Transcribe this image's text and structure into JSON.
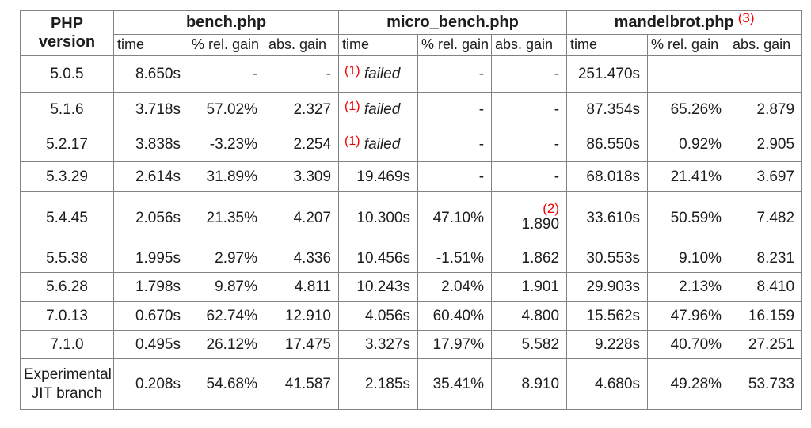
{
  "colors": {
    "red": "#f20000",
    "border": "#828282",
    "text": "#1d1d1d",
    "bg": "#ffffff"
  },
  "table": {
    "corner_header": "PHP version",
    "groups": [
      {
        "label": "bench.php",
        "note": ""
      },
      {
        "label": "micro_bench.php",
        "note": ""
      },
      {
        "label": "mandelbrot.php",
        "note": "(3)"
      }
    ],
    "subheaders": [
      "time",
      "% rel. gain",
      "abs. gain",
      "time",
      "% rel. gain",
      "abs. gain",
      "time",
      "% rel. gain",
      "abs. gain"
    ],
    "column_keys": [
      "bench-time",
      "bench-rel-gain",
      "bench-abs-gain",
      "micro-time",
      "micro-rel-gain",
      "micro-abs-gain",
      "mandelbrot-time",
      "mandelbrot-rel-gain",
      "mandelbrot-abs-gain"
    ],
    "rows": [
      {
        "version": "5.0.5",
        "cells": [
          "8.650s",
          "-",
          "-",
          {
            "note": "(1)",
            "text": "failed",
            "italic": true,
            "align": "left"
          },
          "-",
          "-",
          "251.470s",
          "",
          ""
        ]
      },
      {
        "version": "5.1.6",
        "cells": [
          "3.718s",
          "57.02%",
          "2.327",
          {
            "note": "(1)",
            "text": "failed",
            "italic": true,
            "align": "left"
          },
          "-",
          "-",
          "87.354s",
          "65.26%",
          "2.879"
        ]
      },
      {
        "version": "5.2.17",
        "cells": [
          "3.838s",
          "-3.23%",
          "2.254",
          {
            "note": "(1)",
            "text": "failed",
            "italic": true,
            "align": "left"
          },
          "-",
          "-",
          "86.550s",
          "0.92%",
          "2.905"
        ]
      },
      {
        "version": "5.3.29",
        "cells": [
          "2.614s",
          "31.89%",
          "3.309",
          "19.469s",
          "-",
          "-",
          "68.018s",
          "21.41%",
          "3.697"
        ]
      },
      {
        "version": "5.4.45",
        "cells": [
          "2.056s",
          "21.35%",
          "4.207",
          "10.300s",
          "47.10%",
          {
            "note": "(2)",
            "note_block": true,
            "text": "1.890"
          },
          "33.610s",
          "50.59%",
          "7.482"
        ]
      },
      {
        "version": "5.5.38",
        "cells": [
          "1.995s",
          "2.97%",
          "4.336",
          "10.456s",
          "-1.51%",
          "1.862",
          "30.553s",
          "9.10%",
          "8.231"
        ]
      },
      {
        "version": "5.6.28",
        "cells": [
          "1.798s",
          "9.87%",
          "4.811",
          "10.243s",
          "2.04%",
          "1.901",
          "29.903s",
          "2.13%",
          "8.410"
        ]
      },
      {
        "version": "7.0.13",
        "cells": [
          "0.670s",
          "62.74%",
          "12.910",
          "4.056s",
          "60.40%",
          "4.800",
          "15.562s",
          "47.96%",
          "16.159"
        ]
      },
      {
        "version": "7.1.0",
        "cells": [
          "0.495s",
          "26.12%",
          "17.475",
          "3.327s",
          "17.97%",
          "5.582",
          "9.228s",
          "40.70%",
          "27.251"
        ]
      },
      {
        "version": "Experimental JIT branch",
        "cells": [
          "0.208s",
          "54.68%",
          "41.587",
          "2.185s",
          "35.41%",
          "8.910",
          "4.680s",
          "49.28%",
          "53.733"
        ]
      }
    ]
  },
  "chart_data": {
    "type": "table",
    "title": "",
    "column_groups": [
      "PHP version",
      "bench.php",
      "micro_bench.php",
      "mandelbrot.php (3)"
    ],
    "columns": [
      "PHP version",
      "bench.php time",
      "bench.php % rel. gain",
      "bench.php abs. gain",
      "micro_bench.php time",
      "micro_bench.php % rel. gain",
      "micro_bench.php abs. gain",
      "mandelbrot.php time",
      "mandelbrot.php % rel. gain",
      "mandelbrot.php abs. gain"
    ],
    "rows": [
      [
        "5.0.5",
        "8.650s",
        "-",
        "-",
        "(1) failed",
        "-",
        "-",
        "251.470s",
        "",
        ""
      ],
      [
        "5.1.6",
        "3.718s",
        "57.02%",
        "2.327",
        "(1) failed",
        "-",
        "-",
        "87.354s",
        "65.26%",
        "2.879"
      ],
      [
        "5.2.17",
        "3.838s",
        "-3.23%",
        "2.254",
        "(1) failed",
        "-",
        "-",
        "86.550s",
        "0.92%",
        "2.905"
      ],
      [
        "5.3.29",
        "2.614s",
        "31.89%",
        "3.309",
        "19.469s",
        "-",
        "-",
        "68.018s",
        "21.41%",
        "3.697"
      ],
      [
        "5.4.45",
        "2.056s",
        "21.35%",
        "4.207",
        "10.300s",
        "47.10%",
        "(2) 1.890",
        "33.610s",
        "50.59%",
        "7.482"
      ],
      [
        "5.5.38",
        "1.995s",
        "2.97%",
        "4.336",
        "10.456s",
        "-1.51%",
        "1.862",
        "30.553s",
        "9.10%",
        "8.231"
      ],
      [
        "5.6.28",
        "1.798s",
        "9.87%",
        "4.811",
        "10.243s",
        "2.04%",
        "1.901",
        "29.903s",
        "2.13%",
        "8.410"
      ],
      [
        "7.0.13",
        "0.670s",
        "62.74%",
        "12.910",
        "4.056s",
        "60.40%",
        "4.800",
        "15.562s",
        "47.96%",
        "16.159"
      ],
      [
        "7.1.0",
        "0.495s",
        "26.12%",
        "17.475",
        "3.327s",
        "17.97%",
        "5.582",
        "9.228s",
        "40.70%",
        "27.251"
      ],
      [
        "Experimental JIT branch",
        "0.208s",
        "54.68%",
        "41.587",
        "2.185s",
        "35.41%",
        "8.910",
        "4.680s",
        "49.28%",
        "53.733"
      ]
    ],
    "footnote_markers": [
      "(1)",
      "(2)",
      "(3)"
    ],
    "footnote_color": "#f20000"
  }
}
